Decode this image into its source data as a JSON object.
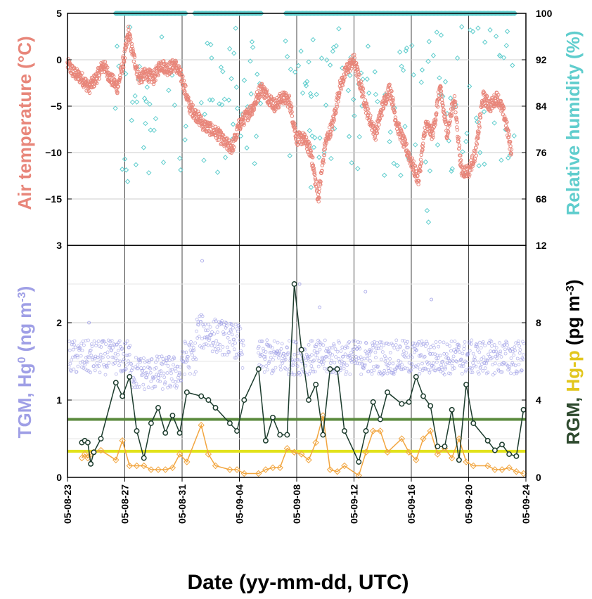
{
  "chart_data": [
    {
      "type": "scatter",
      "panel": "top",
      "x_type": "date",
      "xlim": [
        "05-08-23",
        "05-09-24"
      ],
      "x_ticks": [
        "05-08-23",
        "05-08-27",
        "05-08-31",
        "05-09-04",
        "05-09-08",
        "05-09-12",
        "05-09-16",
        "05-09-20",
        "05-09-24"
      ],
      "ylabel_left": "Air temperature (°C)",
      "ylabel_right": "Relative humidity (%)",
      "ylim_left": [
        -20,
        5
      ],
      "ylim_right": [
        60,
        100
      ],
      "yticks_left": [
        "5",
        "0",
        "−5",
        "−10",
        "−15"
      ],
      "yticks_right": [
        "100",
        "92",
        "84",
        "76",
        "68"
      ],
      "grid": true,
      "colors": {
        "temperature": "#e8867a",
        "humidity": "#5fcdcd"
      },
      "series": [
        {
          "axis": "left",
          "marker": "circle",
          "values_anchor": {
            "x": [
              "05-08-23 00:00",
              "05-08-23 12:00",
              "05-08-24 00:00",
              "05-08-24 12:00",
              "05-08-25 00:00",
              "05-08-25 12:00",
              "05-08-26 00:00",
              "05-08-26 12:00",
              "05-08-27 00:00",
              "05-08-27 06:00",
              "05-08-27 12:00",
              "05-08-28 00:00",
              "05-08-28 12:00",
              "05-08-29 00:00",
              "05-08-29 12:00",
              "05-08-30 00:00",
              "05-08-30 12:00",
              "05-08-31 00:00",
              "05-08-31 12:00",
              "05-09-01 00:00",
              "05-09-01 12:00",
              "05-09-02 00:00",
              "05-09-02 12:00",
              "05-09-03 00:00",
              "05-09-03 12:00",
              "05-09-04 00:00",
              "05-09-04 12:00",
              "05-09-05 00:00",
              "05-09-05 12:00",
              "05-09-06 00:00",
              "05-09-06 12:00",
              "05-09-07 00:00",
              "05-09-07 12:00",
              "05-09-08 00:00",
              "05-09-08 12:00",
              "05-09-09 00:00",
              "05-09-09 12:00",
              "05-09-10 00:00",
              "05-09-10 12:00",
              "05-09-11 00:00",
              "05-09-11 12:00",
              "05-09-12 00:00",
              "05-09-12 12:00",
              "05-09-13 00:00",
              "05-09-13 12:00",
              "05-09-14 00:00",
              "05-09-14 12:00",
              "05-09-15 00:00",
              "05-09-15 12:00",
              "05-09-16 00:00",
              "05-09-16 12:00",
              "05-09-17 00:00",
              "05-09-17 12:00",
              "05-09-18 00:00",
              "05-09-18 12:00",
              "05-09-19 00:00",
              "05-09-19 12:00",
              "05-09-20 00:00",
              "05-09-20 12:00",
              "05-09-21 00:00",
              "05-09-21 12:00",
              "05-09-22 00:00",
              "05-09-22 12:00",
              "05-09-23 00:00"
            ],
            "y": [
              -0.5,
              -1.5,
              -2,
              -3,
              -2,
              -0.5,
              -2,
              -3,
              0.5,
              3,
              1,
              -2,
              -1.5,
              -2,
              -0.5,
              -1,
              -0.5,
              -2,
              -5,
              -6,
              -7,
              -7.5,
              -8,
              -9,
              -9.5,
              -7,
              -6,
              -5,
              -3,
              -4,
              -5,
              -4,
              -4.5,
              -8.5,
              -8.5,
              -10,
              -15,
              -9,
              -7,
              -3,
              -1,
              0,
              -3,
              -6,
              -8,
              -5,
              -3,
              -7,
              -9,
              -11,
              -13,
              -7,
              -8,
              -3,
              -8,
              -4,
              -12,
              -12,
              -10,
              -4,
              -5,
              -4,
              -6,
              -10
            ]
          }
        },
        {
          "axis": "right",
          "marker": "diamond",
          "values_summary": "mostly 100% with frequent drops to 72–98%; minimum ~64% near 05-09-17"
        }
      ]
    },
    {
      "type": "scatter+line",
      "panel": "bottom",
      "x_type": "date",
      "xlabel": "Date (yy-mm-dd, UTC)",
      "xlim": [
        "05-08-23",
        "05-09-24"
      ],
      "x_ticks": [
        "05-08-23",
        "05-08-27",
        "05-08-31",
        "05-09-04",
        "05-09-08",
        "05-09-12",
        "05-09-16",
        "05-09-20",
        "05-09-24"
      ],
      "ylabel_left": "TGM, Hg0 (ng m-3)",
      "ylabel_right": "RGM, Hg-p (pg m-3)",
      "ylim_left": [
        0,
        3
      ],
      "ylim_right": [
        0,
        12
      ],
      "yticks_left": [
        "3",
        "2",
        "1",
        "0"
      ],
      "yticks_right": [
        "12",
        "8",
        "4",
        "0"
      ],
      "reference_lines": [
        {
          "axis": "right",
          "value": 3.0,
          "color": "#5a8a3c"
        },
        {
          "axis": "right",
          "value": 1.35,
          "color": "#e2e21c"
        }
      ],
      "colors": {
        "tgm": "#9f9fe6",
        "rgm": "#1b3b2c",
        "hgp": "#f2a640"
      },
      "series": [
        {
          "axis": "left",
          "marker": "circle",
          "values_summary": "dense points ~1.2–1.9 ng/m3; elevated ~1.8–2.2 between 05-09-01 and 05-09-04"
        },
        {
          "axis": "right",
          "marker": "circle",
          "x": [
            "05-08-24 00:00",
            "05-08-24 05:00",
            "05-08-24 10:00",
            "05-08-24 15:00",
            "05-08-24 20:00",
            "05-08-25 08:00",
            "05-08-26 09:00",
            "05-08-26 20:00",
            "05-08-27 08:00",
            "05-08-27 20:00",
            "05-08-28 08:00",
            "05-08-28 20:00",
            "05-08-29 08:00",
            "05-08-29 20:00",
            "05-08-30 08:00",
            "05-08-30 20:00",
            "05-08-31 08:00",
            "05-09-01 08:00",
            "05-09-01 20:00",
            "05-09-02 08:00",
            "05-09-03 08:00",
            "05-09-03 20:00",
            "05-09-04 08:00",
            "05-09-05 08:00",
            "05-09-05 20:00",
            "05-09-06 08:00",
            "05-09-06 20:00",
            "05-09-07 08:00",
            "05-09-07 20:00",
            "05-09-08 08:00",
            "05-09-08 20:00",
            "05-09-09 08:00",
            "05-09-09 20:00",
            "05-09-10 08:00",
            "05-09-10 20:00",
            "05-09-11 08:00",
            "05-09-12 08:00",
            "05-09-12 20:00",
            "05-09-13 08:00",
            "05-09-13 20:00",
            "05-09-14 08:00",
            "05-09-15 08:00",
            "05-09-15 20:00",
            "05-09-16 08:00",
            "05-09-16 20:00",
            "05-09-17 08:00",
            "05-09-17 20:00",
            "05-09-18 08:00",
            "05-09-18 20:00",
            "05-09-19 08:00",
            "05-09-19 20:00",
            "05-09-20 08:00",
            "05-09-21 08:00",
            "05-09-21 20:00",
            "05-09-22 08:00",
            "05-09-22 20:00",
            "05-09-23 08:00",
            "05-09-23 20:00"
          ],
          "values": [
            1.8,
            1.9,
            1.8,
            0.7,
            1.3,
            2.0,
            4.9,
            4.2,
            5.2,
            2.4,
            1.0,
            2.8,
            3.6,
            2.3,
            3.2,
            2.3,
            4.4,
            4.2,
            4.0,
            3.6,
            2.8,
            2.4,
            4.0,
            5.6,
            1.9,
            3.1,
            2.2,
            2.2,
            10.0,
            6.6,
            4.0,
            4.8,
            2.2,
            5.6,
            5.6,
            2.4,
            0.8,
            2.4,
            3.9,
            3.0,
            4.4,
            3.8,
            3.9,
            5.2,
            4.2,
            3.7,
            1.6,
            1.6,
            3.5,
            0.9,
            4.8,
            2.8,
            1.9,
            1.4,
            1.7,
            1.2,
            1.1,
            3.5
          ]
        },
        {
          "axis": "right",
          "marker": "diamond",
          "x": [
            "05-08-24 00:00",
            "05-08-24 05:00",
            "05-08-24 10:00",
            "05-08-24 15:00",
            "05-08-24 20:00",
            "05-08-25 08:00",
            "05-08-26 09:00",
            "05-08-26 20:00",
            "05-08-27 08:00",
            "05-08-27 20:00",
            "05-08-28 08:00",
            "05-08-28 20:00",
            "05-08-29 08:00",
            "05-08-29 20:00",
            "05-08-30 08:00",
            "05-08-30 20:00",
            "05-08-31 08:00",
            "05-09-01 08:00",
            "05-09-01 20:00",
            "05-09-02 08:00",
            "05-09-03 08:00",
            "05-09-03 20:00",
            "05-09-04 08:00",
            "05-09-05 08:00",
            "05-09-05 20:00",
            "05-09-06 08:00",
            "05-09-06 20:00",
            "05-09-07 08:00",
            "05-09-07 20:00",
            "05-09-08 08:00",
            "05-09-08 20:00",
            "05-09-09 08:00",
            "05-09-09 20:00",
            "05-09-10 08:00",
            "05-09-10 20:00",
            "05-09-11 08:00",
            "05-09-12 08:00",
            "05-09-12 20:00",
            "05-09-13 08:00",
            "05-09-13 20:00",
            "05-09-14 08:00",
            "05-09-15 08:00",
            "05-09-15 20:00",
            "05-09-16 08:00",
            "05-09-16 20:00",
            "05-09-17 08:00",
            "05-09-17 20:00",
            "05-09-18 08:00",
            "05-09-18 20:00",
            "05-09-19 08:00",
            "05-09-19 20:00",
            "05-09-20 08:00",
            "05-09-21 08:00",
            "05-09-21 20:00",
            "05-09-22 08:00",
            "05-09-22 20:00",
            "05-09-23 08:00",
            "05-09-23 20:00"
          ],
          "values": [
            1.0,
            1.2,
            1.0,
            1.2,
            1.3,
            1.4,
            0.9,
            1.9,
            0.6,
            0.6,
            0.6,
            0.4,
            0.4,
            0.4,
            0.5,
            1.2,
            0.8,
            2.7,
            1.2,
            0.6,
            0.4,
            0.4,
            0.2,
            0.2,
            0.4,
            0.5,
            0.5,
            1.5,
            1.3,
            1.2,
            0.9,
            1.8,
            3.2,
            0.4,
            0.3,
            0.6,
            0.1,
            1.3,
            2.4,
            2.4,
            1.3,
            2.0,
            1.3,
            0.9,
            2.0,
            2.4,
            1.2,
            1.5,
            1.0,
            2.0,
            0.8,
            0.6,
            0.6,
            0.4,
            0.4,
            0.5,
            0.3,
            0.2
          ]
        }
      ]
    }
  ]
}
